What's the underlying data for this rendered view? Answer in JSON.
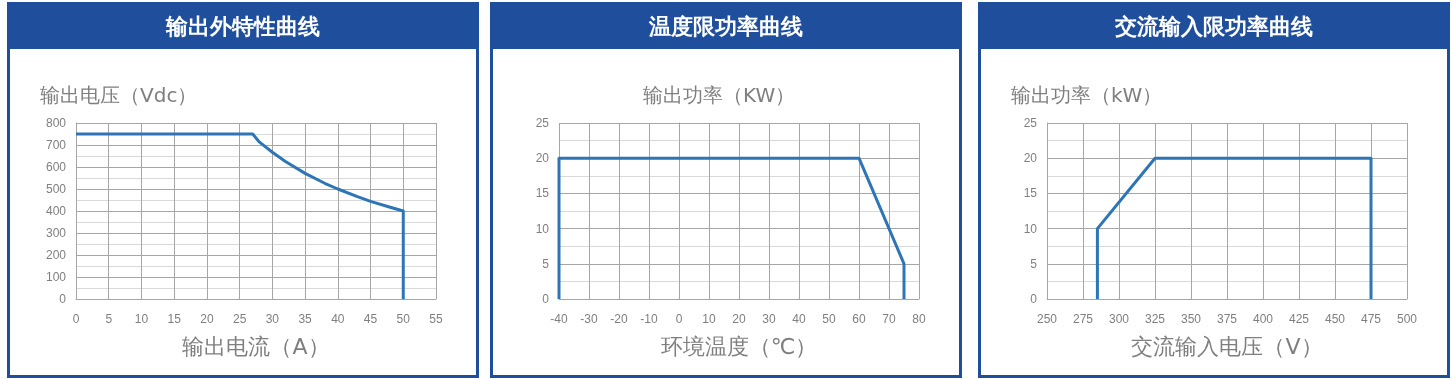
{
  "chart_data": [
    {
      "type": "line",
      "title": "输出外特性曲线",
      "xlabel": "输出电流（A）",
      "ylabel": "输出电压（Vdc）",
      "xlim": [
        0,
        55
      ],
      "xticks": [
        0,
        5,
        10,
        15,
        20,
        25,
        30,
        35,
        40,
        45,
        50,
        55
      ],
      "ylim": [
        0,
        800
      ],
      "yticks": [
        0,
        100,
        200,
        300,
        400,
        500,
        600,
        700,
        800
      ],
      "grid": true,
      "marker": "none",
      "line_style": "solid",
      "series": [
        {
          "color": "#2e75b6",
          "x": [
            0,
            27,
            28,
            29,
            30,
            32,
            35,
            38,
            40,
            43,
            45,
            48,
            50,
            50
          ],
          "values": [
            750,
            750,
            714,
            690,
            667,
            625,
            571,
            526,
            500,
            465,
            444,
            417,
            400,
            0
          ]
        }
      ]
    },
    {
      "type": "line",
      "title": "温度限功率曲线",
      "xlabel": "环境温度（℃）",
      "ylabel": "输出功率（KW）",
      "xlim": [
        -40,
        80
      ],
      "xticks": [
        -40,
        -30,
        -20,
        -10,
        0,
        10,
        20,
        30,
        40,
        50,
        60,
        70,
        80
      ],
      "ylim": [
        0,
        25
      ],
      "yticks": [
        0,
        5,
        10,
        15,
        20,
        25
      ],
      "grid": true,
      "marker": "none",
      "line_style": "solid",
      "series": [
        {
          "color": "#2e75b6",
          "x": [
            -40,
            -40,
            60,
            75,
            75
          ],
          "values": [
            0,
            20,
            20,
            5,
            0
          ]
        }
      ]
    },
    {
      "type": "line",
      "title": "交流输入限功率曲线",
      "xlabel": "交流输入电压（V）",
      "ylabel": "输出功率（kW）",
      "xlim": [
        250,
        500
      ],
      "xticks": [
        250,
        275,
        300,
        325,
        350,
        375,
        400,
        425,
        450,
        475,
        500
      ],
      "ylim": [
        0,
        25
      ],
      "yticks": [
        0,
        5,
        10,
        15,
        20,
        25
      ],
      "grid": true,
      "marker": "none",
      "line_style": "solid",
      "series": [
        {
          "color": "#2e75b6",
          "x": [
            285,
            285,
            325,
            475,
            475
          ],
          "values": [
            0,
            10,
            20,
            20,
            0
          ]
        }
      ]
    }
  ]
}
